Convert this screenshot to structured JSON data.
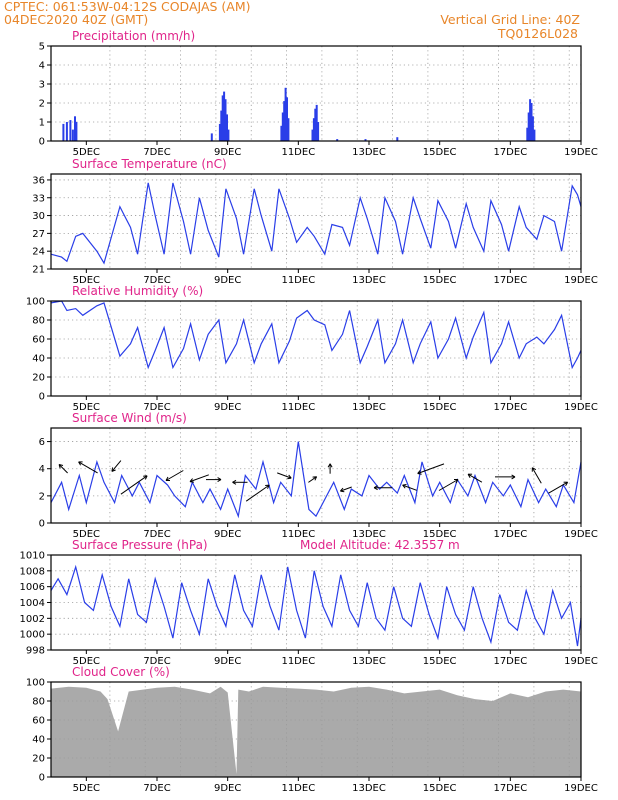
{
  "header": {
    "line1_left": "CPTEC:   061:53W-04:12S   CODAJAS (AM)",
    "line2_left": "04DEC2020 40Z (GMT)",
    "line2_right": "Vertical Grid Line: 40Z",
    "line3_right": "TQ0126L028"
  },
  "colors": {
    "series": "#2a3ee8",
    "title": "#e0248a",
    "header": "#e8862a",
    "grid": "#9a9a9a",
    "cloud": "#aaaaaa"
  },
  "x_tick_labels": [
    "5DEC",
    "7DEC",
    "9DEC",
    "11DEC",
    "13DEC",
    "15DEC",
    "17DEC",
    "19DEC"
  ],
  "chart_data": [
    {
      "type": "bar",
      "title": "Precipitation (mm/h)",
      "ylim": [
        0,
        5
      ],
      "yticks": [
        0,
        1,
        2,
        3,
        4,
        5
      ],
      "x_range_days": [
        4.0,
        19.0
      ],
      "bars": [
        {
          "x": 4.35,
          "y": 0.9
        },
        {
          "x": 4.45,
          "y": 1.0
        },
        {
          "x": 4.55,
          "y": 1.1
        },
        {
          "x": 4.62,
          "y": 0.6
        },
        {
          "x": 4.68,
          "y": 1.3
        },
        {
          "x": 4.72,
          "y": 1.0
        },
        {
          "x": 8.55,
          "y": 0.4
        },
        {
          "x": 8.78,
          "y": 0.9
        },
        {
          "x": 8.82,
          "y": 1.6
        },
        {
          "x": 8.86,
          "y": 2.4
        },
        {
          "x": 8.9,
          "y": 2.6
        },
        {
          "x": 8.94,
          "y": 2.2
        },
        {
          "x": 8.98,
          "y": 1.4
        },
        {
          "x": 9.02,
          "y": 0.6
        },
        {
          "x": 10.52,
          "y": 0.8
        },
        {
          "x": 10.56,
          "y": 1.5
        },
        {
          "x": 10.6,
          "y": 2.1
        },
        {
          "x": 10.64,
          "y": 2.8
        },
        {
          "x": 10.68,
          "y": 2.3
        },
        {
          "x": 10.72,
          "y": 1.2
        },
        {
          "x": 11.4,
          "y": 0.6
        },
        {
          "x": 11.44,
          "y": 1.2
        },
        {
          "x": 11.48,
          "y": 1.7
        },
        {
          "x": 11.52,
          "y": 1.9
        },
        {
          "x": 11.56,
          "y": 1.0
        },
        {
          "x": 12.1,
          "y": 0.1
        },
        {
          "x": 12.9,
          "y": 0.1
        },
        {
          "x": 13.8,
          "y": 0.2
        },
        {
          "x": 17.48,
          "y": 0.7
        },
        {
          "x": 17.52,
          "y": 1.5
        },
        {
          "x": 17.56,
          "y": 2.2
        },
        {
          "x": 17.6,
          "y": 2.0
        },
        {
          "x": 17.64,
          "y": 1.3
        },
        {
          "x": 17.68,
          "y": 0.6
        }
      ]
    },
    {
      "type": "line",
      "title": "Surface Temperature (nC)",
      "ylim": [
        21,
        37
      ],
      "yticks": [
        21,
        24,
        27,
        30,
        33,
        36
      ],
      "x": [
        4.0,
        4.3,
        4.45,
        4.7,
        4.9,
        5.3,
        5.5,
        5.95,
        6.25,
        6.45,
        6.75,
        6.95,
        7.2,
        7.45,
        7.75,
        7.95,
        8.2,
        8.45,
        8.75,
        8.95,
        9.25,
        9.45,
        9.75,
        9.95,
        10.25,
        10.45,
        10.75,
        10.95,
        11.25,
        11.45,
        11.75,
        11.95,
        12.25,
        12.45,
        12.75,
        12.95,
        13.25,
        13.45,
        13.75,
        13.95,
        14.25,
        14.45,
        14.75,
        14.95,
        15.25,
        15.45,
        15.75,
        15.95,
        16.25,
        16.45,
        16.75,
        16.95,
        17.25,
        17.45,
        17.75,
        17.95,
        18.25,
        18.45,
        18.75,
        18.9,
        19.0
      ],
      "y": [
        23.5,
        23.0,
        22.3,
        26.5,
        27.0,
        24.0,
        22.0,
        31.5,
        28.0,
        23.5,
        35.5,
        30.0,
        23.5,
        35.5,
        29.0,
        23.5,
        33.0,
        27.5,
        23.0,
        34.5,
        29.5,
        23.5,
        34.5,
        30.0,
        24.0,
        34.5,
        29.5,
        25.5,
        28.0,
        26.5,
        23.5,
        28.5,
        28.0,
        25.0,
        33.0,
        29.5,
        23.5,
        33.0,
        29.0,
        23.5,
        33.0,
        29.5,
        24.5,
        32.5,
        29.0,
        24.5,
        32.0,
        28.0,
        24.0,
        32.5,
        28.5,
        24.0,
        31.5,
        28.0,
        26.0,
        30.0,
        29.0,
        24.0,
        35.0,
        33.5,
        31.5
      ]
    },
    {
      "type": "line",
      "title": "Relative Humidity (%)",
      "ylim": [
        0,
        100
      ],
      "yticks": [
        0,
        20,
        40,
        60,
        80,
        100
      ],
      "x": [
        4.0,
        4.3,
        4.45,
        4.7,
        4.9,
        5.3,
        5.5,
        5.95,
        6.25,
        6.45,
        6.75,
        6.95,
        7.2,
        7.45,
        7.75,
        7.95,
        8.2,
        8.45,
        8.75,
        8.95,
        9.25,
        9.45,
        9.75,
        9.95,
        10.25,
        10.45,
        10.75,
        10.95,
        11.25,
        11.45,
        11.75,
        11.95,
        12.25,
        12.45,
        12.75,
        12.95,
        13.25,
        13.45,
        13.75,
        13.95,
        14.25,
        14.45,
        14.75,
        14.95,
        15.25,
        15.45,
        15.75,
        15.95,
        16.25,
        16.45,
        16.75,
        16.95,
        17.25,
        17.45,
        17.75,
        17.95,
        18.25,
        18.45,
        18.75,
        18.9,
        19.0
      ],
      "y": [
        98,
        100,
        90,
        92,
        85,
        95,
        98,
        42,
        55,
        72,
        30,
        48,
        72,
        30,
        50,
        76,
        38,
        65,
        80,
        35,
        55,
        80,
        35,
        55,
        76,
        35,
        58,
        82,
        90,
        80,
        75,
        48,
        65,
        90,
        35,
        52,
        80,
        35,
        55,
        80,
        35,
        55,
        78,
        40,
        60,
        82,
        40,
        62,
        88,
        35,
        55,
        78,
        40,
        55,
        62,
        55,
        70,
        85,
        30,
        40,
        48
      ]
    },
    {
      "type": "line",
      "title": "Surface Wind (m/s)",
      "ylim": [
        0,
        7
      ],
      "yticks": [
        0,
        2,
        4,
        6
      ],
      "x": [
        4.0,
        4.3,
        4.5,
        4.8,
        5.0,
        5.3,
        5.5,
        5.8,
        6.0,
        6.3,
        6.5,
        6.8,
        7.0,
        7.3,
        7.5,
        7.8,
        8.0,
        8.3,
        8.5,
        8.8,
        9.0,
        9.3,
        9.5,
        9.8,
        10.0,
        10.3,
        10.5,
        10.8,
        11.0,
        11.3,
        11.5,
        11.8,
        12.0,
        12.3,
        12.5,
        12.8,
        13.0,
        13.3,
        13.5,
        13.8,
        14.0,
        14.3,
        14.5,
        14.8,
        15.0,
        15.3,
        15.5,
        15.8,
        16.0,
        16.3,
        16.5,
        16.8,
        17.0,
        17.3,
        17.5,
        17.8,
        18.0,
        18.3,
        18.5,
        18.8,
        19.0
      ],
      "y": [
        1.5,
        3.0,
        1.0,
        3.5,
        1.5,
        4.5,
        3.0,
        1.5,
        3.5,
        2.0,
        3.0,
        1.5,
        3.5,
        2.8,
        2.0,
        1.2,
        3.0,
        1.5,
        2.5,
        1.0,
        2.5,
        0.5,
        3.5,
        2.5,
        4.5,
        1.5,
        3.0,
        2.0,
        6.0,
        1.0,
        0.5,
        2.0,
        3.0,
        1.0,
        2.5,
        2.0,
        3.5,
        2.5,
        3.0,
        2.2,
        3.5,
        1.5,
        4.5,
        2.0,
        3.0,
        1.5,
        3.2,
        2.0,
        3.5,
        1.5,
        3.0,
        2.0,
        2.8,
        1.2,
        3.2,
        1.5,
        2.5,
        1.2,
        2.8,
        1.5,
        4.5
      ],
      "arrows": [
        {
          "x": 4.35,
          "y": 4.0,
          "dir_deg": 135,
          "speed": 1.2
        },
        {
          "x": 5.05,
          "y": 4.1,
          "dir_deg": 150,
          "speed": 2.2
        },
        {
          "x": 5.85,
          "y": 4.2,
          "dir_deg": 230,
          "speed": 1.4
        },
        {
          "x": 6.35,
          "y": 2.8,
          "dir_deg": 35,
          "speed": 3.2
        },
        {
          "x": 7.5,
          "y": 3.5,
          "dir_deg": 210,
          "speed": 2.0
        },
        {
          "x": 8.2,
          "y": 3.3,
          "dir_deg": 200,
          "speed": 2.0
        },
        {
          "x": 8.6,
          "y": 3.2,
          "dir_deg": 0,
          "speed": 1.5
        },
        {
          "x": 9.35,
          "y": 3.0,
          "dir_deg": 180,
          "speed": 1.5
        },
        {
          "x": 9.85,
          "y": 2.2,
          "dir_deg": 35,
          "speed": 2.8
        },
        {
          "x": 10.6,
          "y": 3.5,
          "dir_deg": 340,
          "speed": 1.5
        },
        {
          "x": 11.4,
          "y": 3.2,
          "dir_deg": 35,
          "speed": 1.0
        },
        {
          "x": 11.9,
          "y": 4.0,
          "dir_deg": 90,
          "speed": 1.0
        },
        {
          "x": 12.35,
          "y": 2.5,
          "dir_deg": 200,
          "speed": 1.2
        },
        {
          "x": 13.4,
          "y": 2.6,
          "dir_deg": 180,
          "speed": 1.8
        },
        {
          "x": 14.15,
          "y": 2.6,
          "dir_deg": 160,
          "speed": 1.5
        },
        {
          "x": 14.75,
          "y": 4.0,
          "dir_deg": 200,
          "speed": 2.8
        },
        {
          "x": 15.25,
          "y": 2.8,
          "dir_deg": 30,
          "speed": 2.2
        },
        {
          "x": 16.0,
          "y": 3.3,
          "dir_deg": 150,
          "speed": 1.6
        },
        {
          "x": 16.85,
          "y": 3.4,
          "dir_deg": 0,
          "speed": 2.0
        },
        {
          "x": 17.75,
          "y": 3.5,
          "dir_deg": 120,
          "speed": 1.8
        },
        {
          "x": 18.35,
          "y": 2.6,
          "dir_deg": 30,
          "speed": 2.2
        }
      ]
    },
    {
      "type": "line",
      "title": "Surface Pressure (hPa)",
      "annotation": "Model Altitude: 42.3557 m",
      "ylim": [
        998,
        1010
      ],
      "yticks": [
        998,
        1000,
        1002,
        1004,
        1006,
        1008,
        1010
      ],
      "x": [
        4.0,
        4.2,
        4.45,
        4.7,
        4.95,
        5.2,
        5.45,
        5.7,
        5.95,
        6.2,
        6.45,
        6.7,
        6.95,
        7.2,
        7.45,
        7.7,
        7.95,
        8.2,
        8.45,
        8.7,
        8.95,
        9.2,
        9.45,
        9.7,
        9.95,
        10.2,
        10.45,
        10.7,
        10.95,
        11.2,
        11.45,
        11.7,
        11.95,
        12.2,
        12.45,
        12.7,
        12.95,
        13.2,
        13.45,
        13.7,
        13.95,
        14.2,
        14.45,
        14.7,
        14.95,
        15.2,
        15.45,
        15.7,
        15.95,
        16.2,
        16.45,
        16.7,
        16.95,
        17.2,
        17.45,
        17.7,
        17.95,
        18.2,
        18.45,
        18.7,
        18.9,
        19.0
      ],
      "y": [
        1005.5,
        1007.0,
        1005.0,
        1008.5,
        1004.0,
        1003.0,
        1007.5,
        1003.5,
        1001.0,
        1007.0,
        1002.5,
        1001.5,
        1007.0,
        1003.5,
        999.5,
        1006.5,
        1003.0,
        1000.0,
        1007.0,
        1003.5,
        1001.0,
        1007.5,
        1003.0,
        1001.0,
        1007.5,
        1003.5,
        1000.5,
        1008.5,
        1003.0,
        999.5,
        1008.0,
        1003.5,
        1001.0,
        1007.5,
        1003.0,
        1001.0,
        1006.5,
        1002.0,
        1000.5,
        1006.0,
        1002.0,
        1001.0,
        1006.5,
        1002.5,
        999.5,
        1006.0,
        1002.5,
        1000.5,
        1006.0,
        1002.0,
        999.0,
        1005.0,
        1001.5,
        1000.5,
        1005.5,
        1002.0,
        1000.0,
        1005.5,
        1002.0,
        1004.0,
        998.5,
        1002.0
      ]
    },
    {
      "type": "area",
      "title": "Cloud Cover (%)",
      "ylim": [
        0,
        100
      ],
      "yticks": [
        0,
        20,
        40,
        60,
        80,
        100
      ],
      "x": [
        4.0,
        4.5,
        5.0,
        5.4,
        5.6,
        5.9,
        6.2,
        6.6,
        7.0,
        7.5,
        8.0,
        8.5,
        8.8,
        9.0,
        9.25,
        9.3,
        9.6,
        10.0,
        10.5,
        11.0,
        11.5,
        12.0,
        12.5,
        13.0,
        13.5,
        14.0,
        14.5,
        15.0,
        15.5,
        16.0,
        16.5,
        17.0,
        17.5,
        18.0,
        18.5,
        19.0
      ],
      "y": [
        93,
        95,
        94,
        90,
        82,
        48,
        90,
        92,
        94,
        95,
        92,
        88,
        95,
        89,
        3,
        92,
        90,
        95,
        94,
        93,
        92,
        90,
        94,
        95,
        92,
        88,
        90,
        92,
        86,
        82,
        80,
        88,
        84,
        90,
        92,
        90
      ]
    }
  ]
}
